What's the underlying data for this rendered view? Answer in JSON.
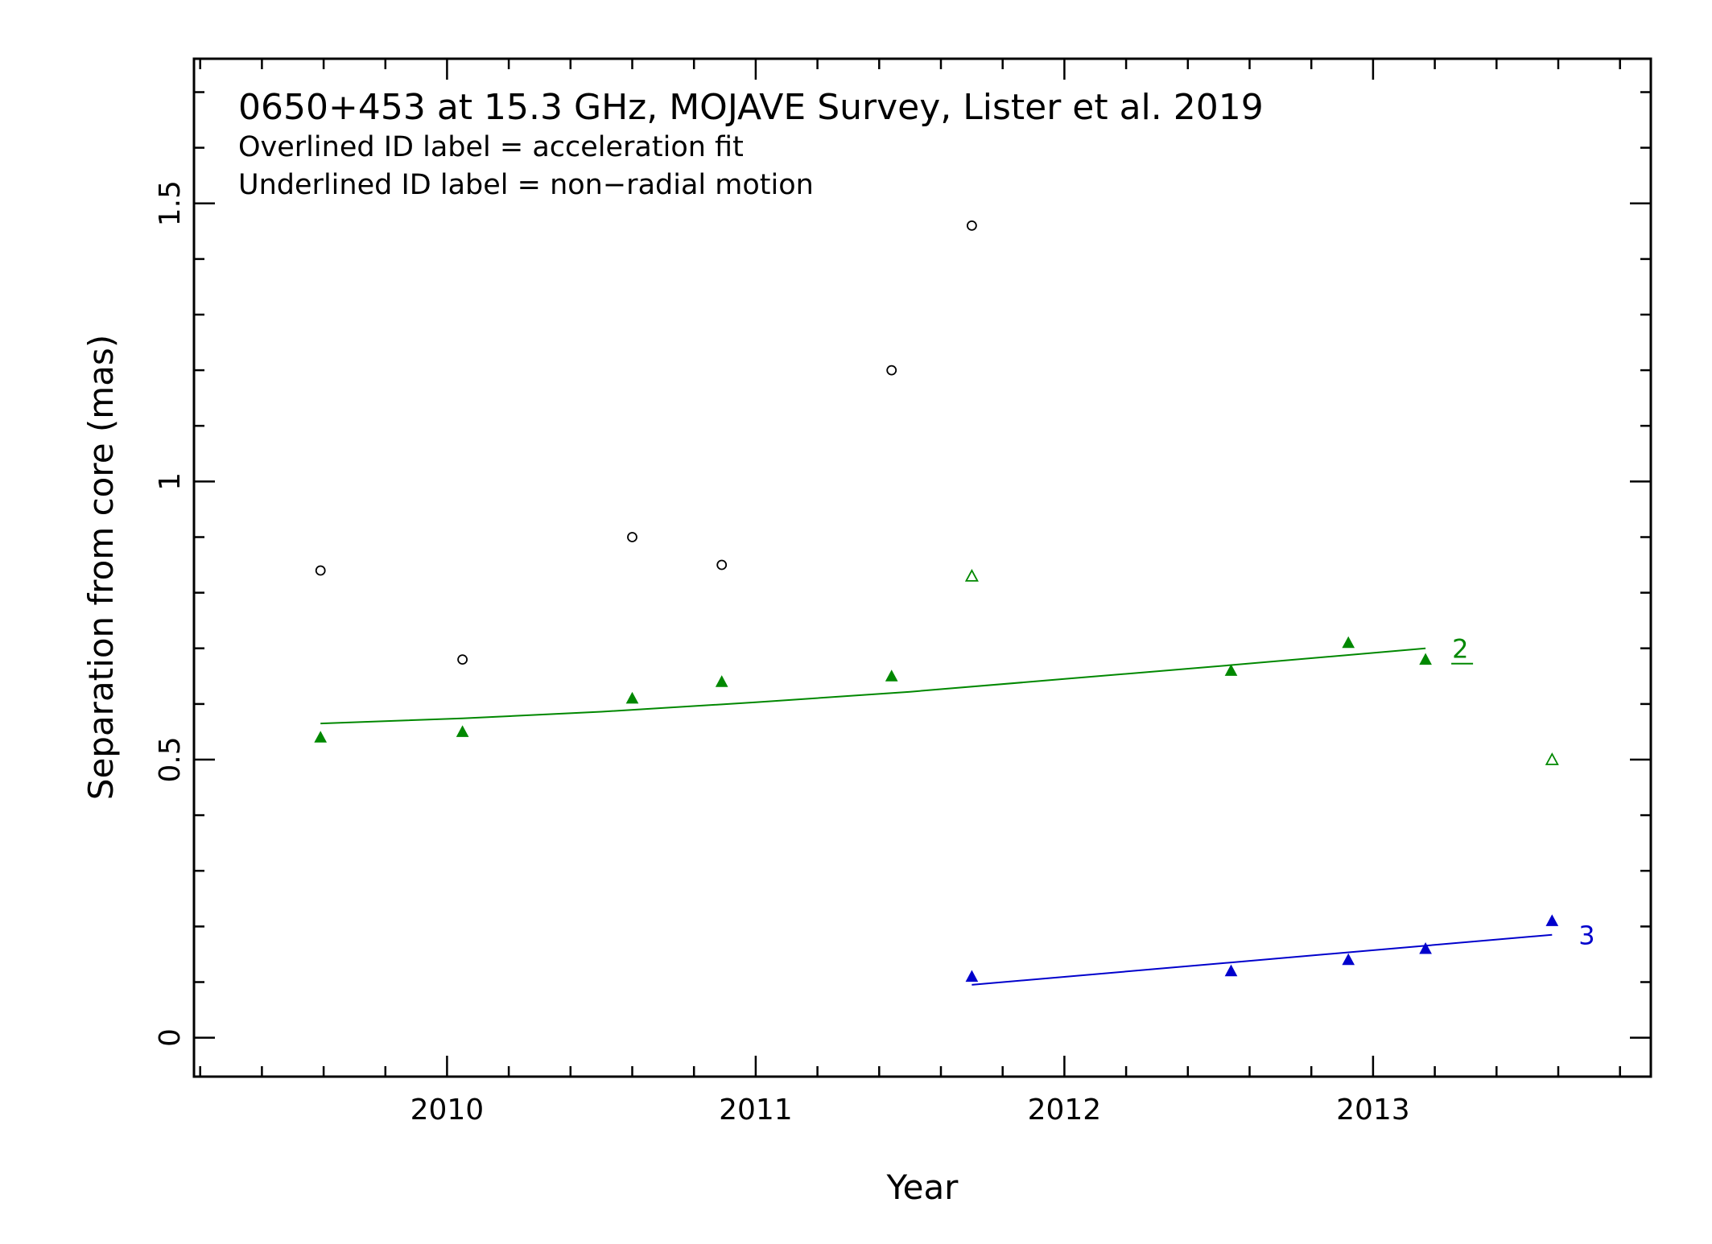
{
  "chart_data": {
    "type": "scatter",
    "title": "0650+453 at 15.3 GHz, MOJAVE Survey, Lister et al. 2019",
    "notes": [
      "Overlined ID label = acceleration fit",
      "Underlined ID label = non−radial motion"
    ],
    "xlabel": "Year",
    "ylabel": "Separation from core (mas)",
    "xlim": [
      2009.18,
      2013.9
    ],
    "ylim": [
      -0.07,
      1.76
    ],
    "xticks": [
      {
        "value": 2010,
        "label": "2010"
      },
      {
        "value": 2011,
        "label": "2011"
      },
      {
        "value": 2012,
        "label": "2012"
      },
      {
        "value": 2013,
        "label": "2013"
      }
    ],
    "yticks": [
      {
        "value": 0,
        "label": "0"
      },
      {
        "value": 0.5,
        "label": "0.5"
      },
      {
        "value": 1,
        "label": "1"
      },
      {
        "value": 1.5,
        "label": "1.5"
      }
    ],
    "grid": false,
    "series": [
      {
        "name": "",
        "color": "#000000",
        "marker": "open-circle",
        "points": [
          {
            "x": 2009.59,
            "y": 0.84
          },
          {
            "x": 2010.05,
            "y": 0.68
          },
          {
            "x": 2010.6,
            "y": 0.9
          },
          {
            "x": 2010.89,
            "y": 0.85
          },
          {
            "x": 2011.44,
            "y": 1.2
          },
          {
            "x": 2011.7,
            "y": 1.46
          }
        ]
      },
      {
        "name": "2",
        "label": "2",
        "label_style": "underlined",
        "color": "#008800",
        "marker": "filled-triangle",
        "points": [
          {
            "x": 2009.59,
            "y": 0.54
          },
          {
            "x": 2010.05,
            "y": 0.55
          },
          {
            "x": 2010.6,
            "y": 0.61
          },
          {
            "x": 2010.89,
            "y": 0.64
          },
          {
            "x": 2011.44,
            "y": 0.65
          },
          {
            "x": 2012.54,
            "y": 0.66
          },
          {
            "x": 2012.92,
            "y": 0.71
          },
          {
            "x": 2013.17,
            "y": 0.68
          }
        ],
        "unused_points": [
          {
            "x": 2011.7,
            "y": 0.83
          },
          {
            "x": 2013.58,
            "y": 0.5
          }
        ],
        "fit": [
          {
            "x": 2009.59,
            "y": 0.565
          },
          {
            "x": 2010.05,
            "y": 0.574
          },
          {
            "x": 2010.5,
            "y": 0.586
          },
          {
            "x": 2011.0,
            "y": 0.603
          },
          {
            "x": 2011.5,
            "y": 0.622
          },
          {
            "x": 2012.0,
            "y": 0.645
          },
          {
            "x": 2012.5,
            "y": 0.668
          },
          {
            "x": 2013.17,
            "y": 0.7
          }
        ]
      },
      {
        "name": "3",
        "label": "3",
        "label_style": "plain",
        "color": "#0000cc",
        "marker": "filled-triangle",
        "points": [
          {
            "x": 2011.7,
            "y": 0.11
          },
          {
            "x": 2012.54,
            "y": 0.12
          },
          {
            "x": 2012.92,
            "y": 0.14
          },
          {
            "x": 2013.17,
            "y": 0.16
          },
          {
            "x": 2013.58,
            "y": 0.21
          }
        ],
        "fit": [
          {
            "x": 2011.7,
            "y": 0.095
          },
          {
            "x": 2013.58,
            "y": 0.185
          }
        ]
      }
    ]
  }
}
